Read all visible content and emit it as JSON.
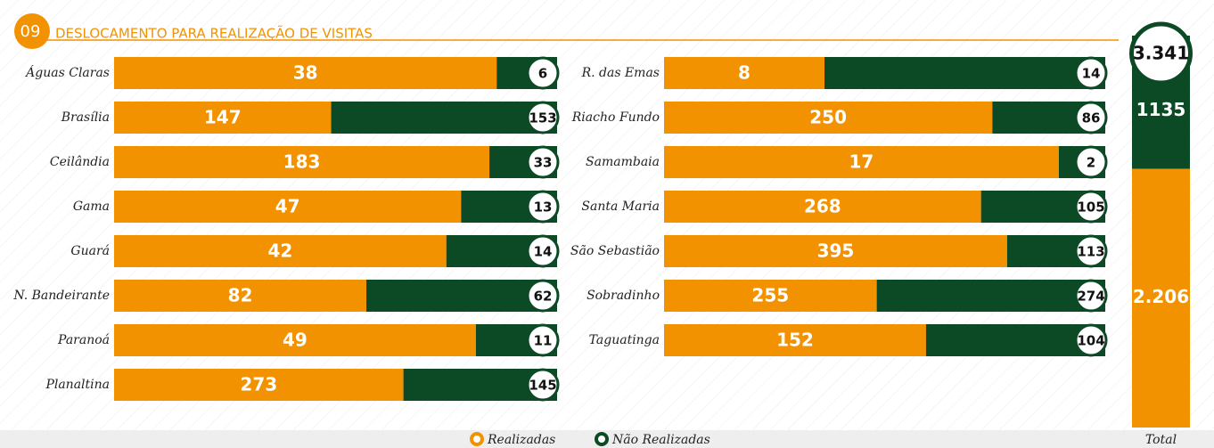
{
  "chart_data": [
    {
      "type": "stacked-share-bar",
      "section_number": "09",
      "title": "DESLOCAMENTO PARA REALIZAÇÃO DE VISITAS",
      "categories": [
        "Águas Claras",
        "Brasília",
        "Ceilândia",
        "Gama",
        "Guará",
        "N. Bandeirante",
        "Paranoá",
        "Planaltina",
        "R. das Emas",
        "Riacho Fundo",
        "Samambaia",
        "Santa Maria",
        "São Sebastião",
        "Sobradinho",
        "Taguatinga"
      ],
      "series": [
        {
          "name": "Realizadas",
          "color": "#f39200",
          "values": [
            38,
            147,
            183,
            47,
            42,
            82,
            49,
            273,
            8,
            250,
            17,
            268,
            395,
            255,
            152
          ]
        },
        {
          "name": "Não Realizadas",
          "color": "#0b4a25",
          "values": [
            6,
            153,
            33,
            13,
            14,
            62,
            11,
            145,
            14,
            86,
            2,
            105,
            113,
            274,
            104
          ]
        }
      ]
    },
    {
      "type": "total-column",
      "categories": [
        "Total"
      ],
      "series": [
        {
          "name": "Realizadas",
          "color": "#f39200",
          "values": [
            2206
          ],
          "value_labels": [
            "2.206"
          ]
        },
        {
          "name": "Não Realizadas",
          "color": "#0b4a25",
          "values": [
            1135
          ]
        }
      ],
      "total": 3341,
      "total_label": "3.341"
    }
  ]
}
